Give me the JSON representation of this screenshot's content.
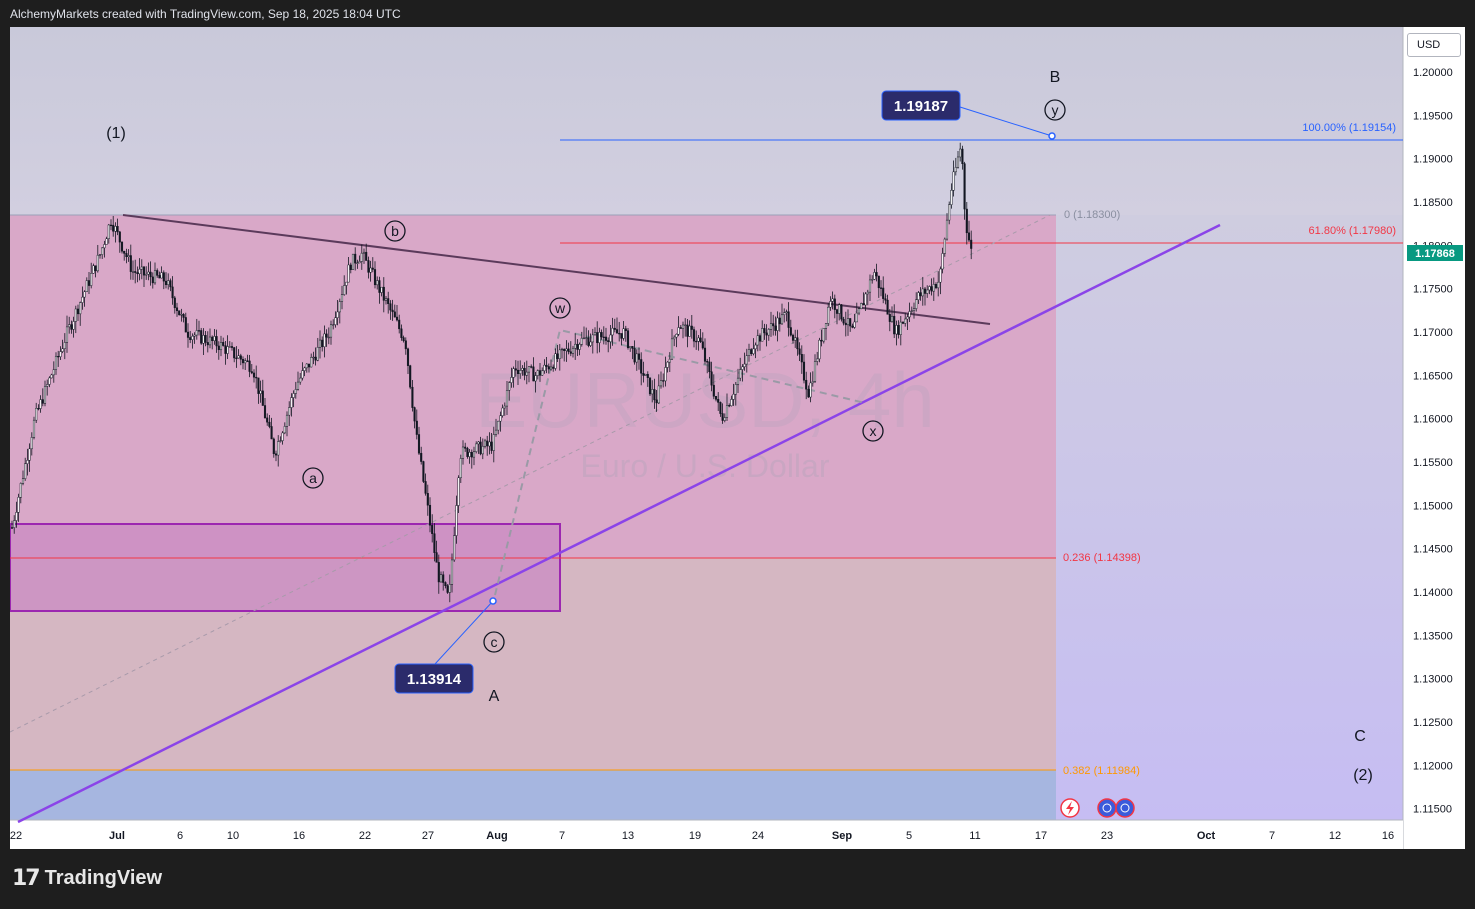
{
  "header": {
    "attribution": "AlchemyMarkets created with TradingView.com, Sep 18, 2025 18:04 UTC"
  },
  "footer": {
    "brand": "TradingView"
  },
  "watermark": {
    "symbol": "EURUSD, 4h",
    "name": "Euro / U.S. Dollar"
  },
  "price_axis": {
    "currency": "USD",
    "last_price": "1.17868"
  },
  "colors": {
    "bull": "#089981",
    "bear": "#f23645",
    "candle": "#131722",
    "wave_line": "#8b44e8",
    "fib_blue": "#2962ff",
    "fib_red": "#f23645",
    "fib_orange": "#ff9800",
    "label_bg": "#2b2b6b"
  },
  "callouts": {
    "high": "1.19187",
    "low": "1.13914"
  },
  "fib_labels": {
    "l100": "100.00% (1.19154)",
    "l618": "61.80% (1.17980)",
    "l0": "0 (1.18300)",
    "l236": "0.236 (1.14398)",
    "l382": "0.382 (1.11984)"
  },
  "wave_labels": {
    "w1": "(1)",
    "w2": "(2)",
    "wa": "a",
    "wb": "b",
    "wc": "c",
    "ww": "w",
    "wx": "x",
    "wy": "y",
    "bigA": "A",
    "bigB": "B",
    "bigC": "C"
  },
  "chart_data": {
    "type": "candlestick",
    "symbol": "EURUSD",
    "timeframe": "4h",
    "y_ticks": [
      "1.20000",
      "1.19500",
      "1.19000",
      "1.18500",
      "1.18000",
      "1.17500",
      "1.17000",
      "1.16500",
      "1.16000",
      "1.15500",
      "1.15000",
      "1.14500",
      "1.14000",
      "1.13500",
      "1.13000",
      "1.12500",
      "1.12000",
      "1.11500"
    ],
    "x_ticks": [
      "22",
      "Jul",
      "6",
      "10",
      "16",
      "22",
      "27",
      "Aug",
      "7",
      "13",
      "19",
      "24",
      "Sep",
      "5",
      "11",
      "17",
      "23",
      "Oct",
      "7",
      "12",
      "16"
    ],
    "ylim": [
      1.1137,
      1.2052
    ],
    "price_path": [
      {
        "date": "2025-06-22",
        "price": 1.148
      },
      {
        "date": "2025-06-24",
        "price": 1.16
      },
      {
        "date": "2025-06-27",
        "price": 1.17
      },
      {
        "date": "2025-06-30",
        "price": 1.179
      },
      {
        "date": "2025-07-01",
        "price": 1.183
      },
      {
        "date": "2025-07-03",
        "price": 1.177
      },
      {
        "date": "2025-07-06",
        "price": 1.176
      },
      {
        "date": "2025-07-08",
        "price": 1.17
      },
      {
        "date": "2025-07-11",
        "price": 1.1685
      },
      {
        "date": "2025-07-14",
        "price": 1.166
      },
      {
        "date": "2025-07-16",
        "price": 1.156
      },
      {
        "date": "2025-07-18",
        "price": 1.164
      },
      {
        "date": "2025-07-21",
        "price": 1.17
      },
      {
        "date": "2025-07-23",
        "price": 1.178
      },
      {
        "date": "2025-07-24",
        "price": 1.179
      },
      {
        "date": "2025-07-26",
        "price": 1.174
      },
      {
        "date": "2025-07-28",
        "price": 1.169
      },
      {
        "date": "2025-07-29",
        "price": 1.158
      },
      {
        "date": "2025-07-31",
        "price": 1.142
      },
      {
        "date": "2025-08-01",
        "price": 1.1391
      },
      {
        "date": "2025-08-02",
        "price": 1.156
      },
      {
        "date": "2025-08-05",
        "price": 1.157
      },
      {
        "date": "2025-08-07",
        "price": 1.166
      },
      {
        "date": "2025-08-09",
        "price": 1.165
      },
      {
        "date": "2025-08-13",
        "price": 1.169
      },
      {
        "date": "2025-08-17",
        "price": 1.17
      },
      {
        "date": "2025-08-20",
        "price": 1.162
      },
      {
        "date": "2025-08-22",
        "price": 1.171
      },
      {
        "date": "2025-08-24",
        "price": 1.169
      },
      {
        "date": "2025-08-26",
        "price": 1.16
      },
      {
        "date": "2025-08-29",
        "price": 1.169
      },
      {
        "date": "2025-09-01",
        "price": 1.172
      },
      {
        "date": "2025-09-03",
        "price": 1.163
      },
      {
        "date": "2025-09-05",
        "price": 1.174
      },
      {
        "date": "2025-09-07",
        "price": 1.17
      },
      {
        "date": "2025-09-09",
        "price": 1.177
      },
      {
        "date": "2025-09-11",
        "price": 1.17
      },
      {
        "date": "2025-09-13",
        "price": 1.174
      },
      {
        "date": "2025-09-15",
        "price": 1.176
      },
      {
        "date": "2025-09-16",
        "price": 1.186
      },
      {
        "date": "2025-09-17",
        "price": 1.1918
      },
      {
        "date": "2025-09-17",
        "price": 1.183
      },
      {
        "date": "2025-09-18",
        "price": 1.1787
      }
    ]
  }
}
